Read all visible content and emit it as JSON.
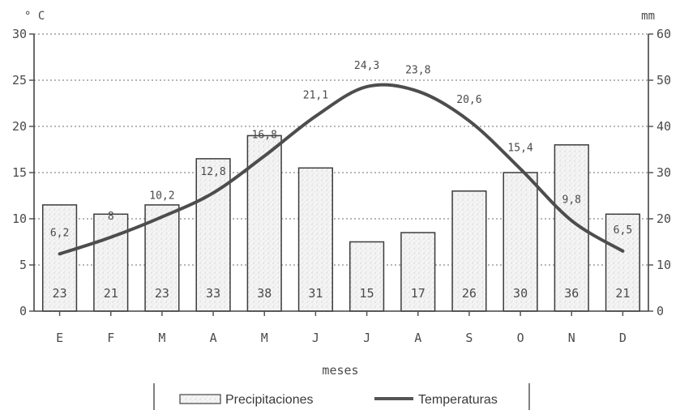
{
  "chart_data": {
    "type": "bar+line",
    "categories": [
      "E",
      "F",
      "M",
      "A",
      "M",
      "J",
      "J",
      "A",
      "S",
      "O",
      "N",
      "D"
    ],
    "xlabel": "meses",
    "left_axis": {
      "unit": "° C",
      "ylim": [
        0,
        30
      ],
      "ticks": [
        "0",
        "5",
        "10",
        "15",
        "20",
        "25",
        "30"
      ]
    },
    "right_axis": {
      "unit": "mm",
      "ylim": [
        0,
        60
      ],
      "ticks": [
        "0",
        "10",
        "20",
        "30",
        "40",
        "50",
        "60"
      ]
    },
    "grid": "horizontal dotted",
    "legend_position": "bottom-center",
    "series": [
      {
        "name": "Precipitaciones",
        "type": "bar",
        "axis": "right",
        "values": [
          23,
          21,
          23,
          33,
          38,
          31,
          15,
          17,
          26,
          30,
          36,
          21
        ],
        "labels": [
          "23",
          "21",
          "23",
          "33",
          "38",
          "31",
          "15",
          "17",
          "26",
          "30",
          "36",
          "21"
        ]
      },
      {
        "name": "Temperaturas",
        "type": "line",
        "axis": "left",
        "values": [
          6.2,
          8,
          10.2,
          12.8,
          16.8,
          21.1,
          24.3,
          23.8,
          20.6,
          15.4,
          9.8,
          6.5
        ],
        "labels": [
          "6,2",
          "8",
          "10,2",
          "12,8",
          "16,8",
          "21,1",
          "24,3",
          "23,8",
          "20,6",
          "15,4",
          "9,8",
          "6,5"
        ]
      }
    ]
  }
}
